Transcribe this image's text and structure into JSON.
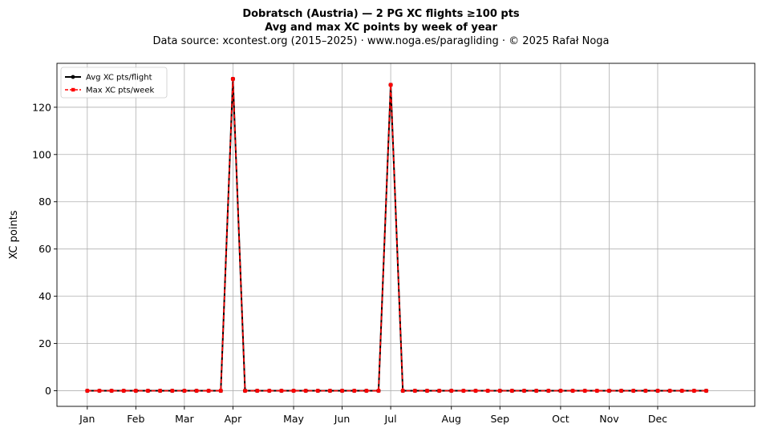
{
  "chart_data": {
    "type": "line",
    "title": "Dobratsch (Austria)  —  2 PG XC flights ≥100 pts",
    "subtitle": "Avg and max XC points by week of year",
    "source_note": "Data source: xcontest.org (2015–2025)  ·  www.noga.es/paragliding  ·  © 2025 Rafał Noga",
    "xlabel": "",
    "ylabel": "XC points",
    "xlim": [
      -2.5,
      55
    ],
    "ylim": [
      -6.6,
      138.6
    ],
    "grid": true,
    "legend_position": "top-left",
    "yticks": [
      0,
      20,
      40,
      60,
      80,
      100,
      120
    ],
    "xticks": [
      {
        "label": "Jan",
        "week": 0
      },
      {
        "label": "Feb",
        "week": 4
      },
      {
        "label": "Mar",
        "week": 8
      },
      {
        "label": "Apr",
        "week": 12
      },
      {
        "label": "May",
        "week": 17
      },
      {
        "label": "Jun",
        "week": 21
      },
      {
        "label": "Jul",
        "week": 25
      },
      {
        "label": "Aug",
        "week": 30
      },
      {
        "label": "Sep",
        "week": 34
      },
      {
        "label": "Oct",
        "week": 39
      },
      {
        "label": "Nov",
        "week": 43
      },
      {
        "label": "Dec",
        "week": 47
      }
    ],
    "x": [
      0,
      1,
      2,
      3,
      4,
      5,
      6,
      7,
      8,
      9,
      10,
      11,
      12,
      13,
      14,
      15,
      16,
      17,
      18,
      19,
      20,
      21,
      22,
      23,
      24,
      25,
      26,
      27,
      28,
      29,
      30,
      31,
      32,
      33,
      34,
      35,
      36,
      37,
      38,
      39,
      40,
      41,
      42,
      43,
      44,
      45,
      46,
      47,
      48,
      49,
      50,
      51
    ],
    "series": [
      {
        "name": "Avg XC pts/flight",
        "color": "#000000",
        "marker": "circle",
        "values": [
          0,
          0,
          0,
          0,
          0,
          0,
          0,
          0,
          0,
          0,
          0,
          0,
          132,
          0,
          0,
          0,
          0,
          0,
          0,
          0,
          0,
          0,
          0,
          0,
          0,
          129.5,
          0,
          0,
          0,
          0,
          0,
          0,
          0,
          0,
          0,
          0,
          0,
          0,
          0,
          0,
          0,
          0,
          0,
          0,
          0,
          0,
          0,
          0,
          0,
          0,
          0,
          0
        ]
      },
      {
        "name": "Max XC pts/week",
        "color": "#ff0000",
        "marker": "square",
        "values": [
          0,
          0,
          0,
          0,
          0,
          0,
          0,
          0,
          0,
          0,
          0,
          0,
          132,
          0,
          0,
          0,
          0,
          0,
          0,
          0,
          0,
          0,
          0,
          0,
          0,
          129.5,
          0,
          0,
          0,
          0,
          0,
          0,
          0,
          0,
          0,
          0,
          0,
          0,
          0,
          0,
          0,
          0,
          0,
          0,
          0,
          0,
          0,
          0,
          0,
          0,
          0,
          0
        ]
      }
    ]
  }
}
